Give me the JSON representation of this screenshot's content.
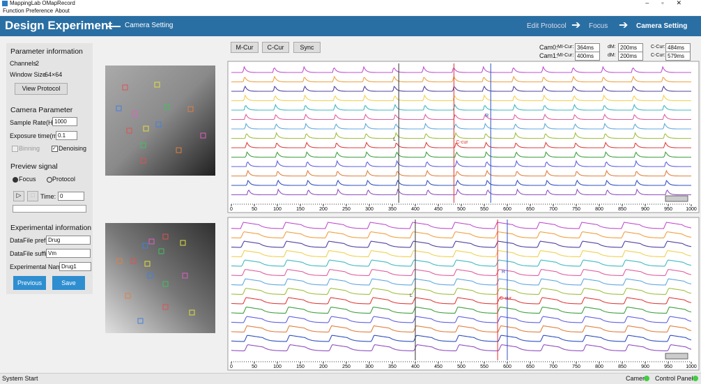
{
  "window": {
    "title": "MappingLab OMapRecord"
  },
  "menu": [
    "Function",
    "Preference",
    "About"
  ],
  "header": {
    "title": "Design Experiment",
    "subtitle": "Camera Setting",
    "steps": [
      "Edit Protocol",
      "Focus",
      "Camera Setting"
    ]
  },
  "parameter_information": {
    "heading": "Parameter information",
    "channels_label": "Channels",
    "channels": "2",
    "window_size_label": "Window Size",
    "window_size": "64×64",
    "button": "View Protocol"
  },
  "camera_parameter": {
    "heading": "Camera Parameter",
    "sample_rate_label": "Sample Rate(Hz)",
    "sample_rate": "1000",
    "exposure_label": "Exposure time(ms)",
    "exposure": "0.1",
    "binning": "Binning",
    "denoising": "Denoising"
  },
  "preview_signal": {
    "heading": "Preview signal",
    "focus": "Focus",
    "protocol": "Protocol",
    "time_label": "Time:",
    "time": "0"
  },
  "experimental_information": {
    "heading": "Experimental information",
    "prefix_label": "DataFile prefix",
    "prefix": "Drug",
    "suffix_label": "DataFile suffix",
    "suffix": "Vm",
    "name_label": "Experimental Name",
    "name": "Drug1"
  },
  "buttons": {
    "previous": "Previous",
    "save": "Save"
  },
  "toolbar": [
    "M-Cur",
    "C-Cur",
    "Sync"
  ],
  "cams": [
    {
      "label": "Cam0:",
      "mi_cur_label": "MI-Cur:",
      "mi_cur": "364ms",
      "dm_label": "dM:",
      "dm": "200ms",
      "c_cur_label": "C-Cur:",
      "c_cur": "484ms"
    },
    {
      "label": "Cam1:",
      "mi_cur_label": "MI-Cur:",
      "mi_cur": "400ms",
      "dm_label": "dM:",
      "dm": "200ms",
      "c_cur_label": "C-Cur:",
      "c_cur": "579ms"
    }
  ],
  "traces": {
    "xlim": [
      0,
      1000
    ],
    "xticks": [
      0,
      50,
      100,
      150,
      200,
      250,
      300,
      350,
      400,
      450,
      500,
      550,
      600,
      650,
      700,
      750,
      800,
      850,
      900,
      950,
      1000
    ],
    "cursor_labels": {
      "l": "L",
      "r": "R",
      "c": "C-cur"
    }
  },
  "status": {
    "left": "System Start",
    "camera": "Camera",
    "control_panel": "Control Panel"
  }
}
